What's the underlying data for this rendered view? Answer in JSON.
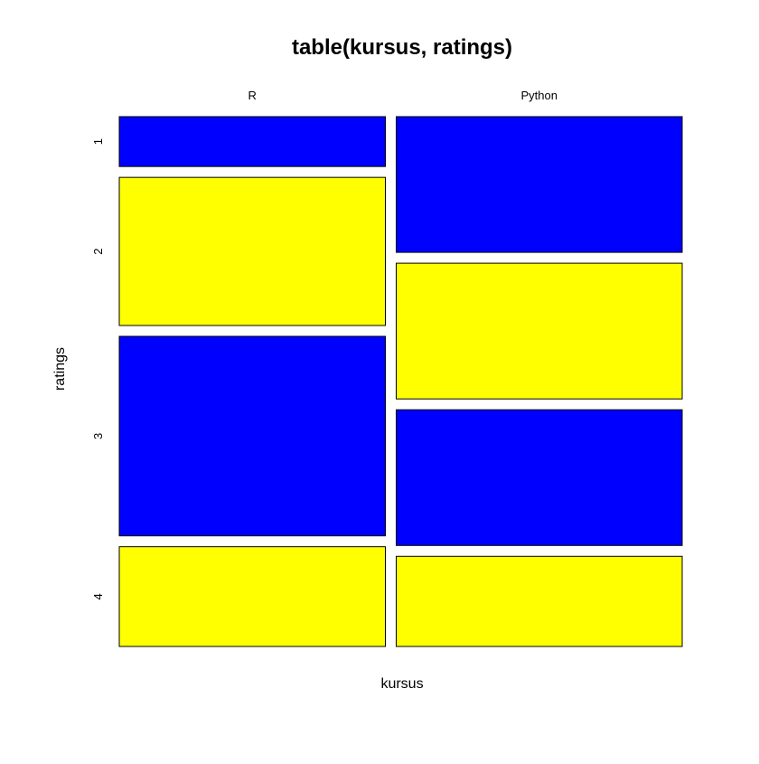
{
  "chart_data": {
    "type": "mosaic",
    "title": "table(kursus, ratings)",
    "xlabel": "kursus",
    "ylabel": "ratings",
    "categories": [
      "R",
      "Python"
    ],
    "rating_levels": [
      "1",
      "2",
      "3",
      "4"
    ],
    "column_widths": [
      0.482,
      0.518
    ],
    "series": [
      {
        "category": "R",
        "proportions": [
          0.099,
          0.294,
          0.396,
          0.198
        ]
      },
      {
        "category": "Python",
        "proportions": [
          0.271,
          0.271,
          0.271,
          0.18
        ]
      }
    ],
    "colors": [
      "#0000ff",
      "#ffff00"
    ],
    "grid": false
  }
}
